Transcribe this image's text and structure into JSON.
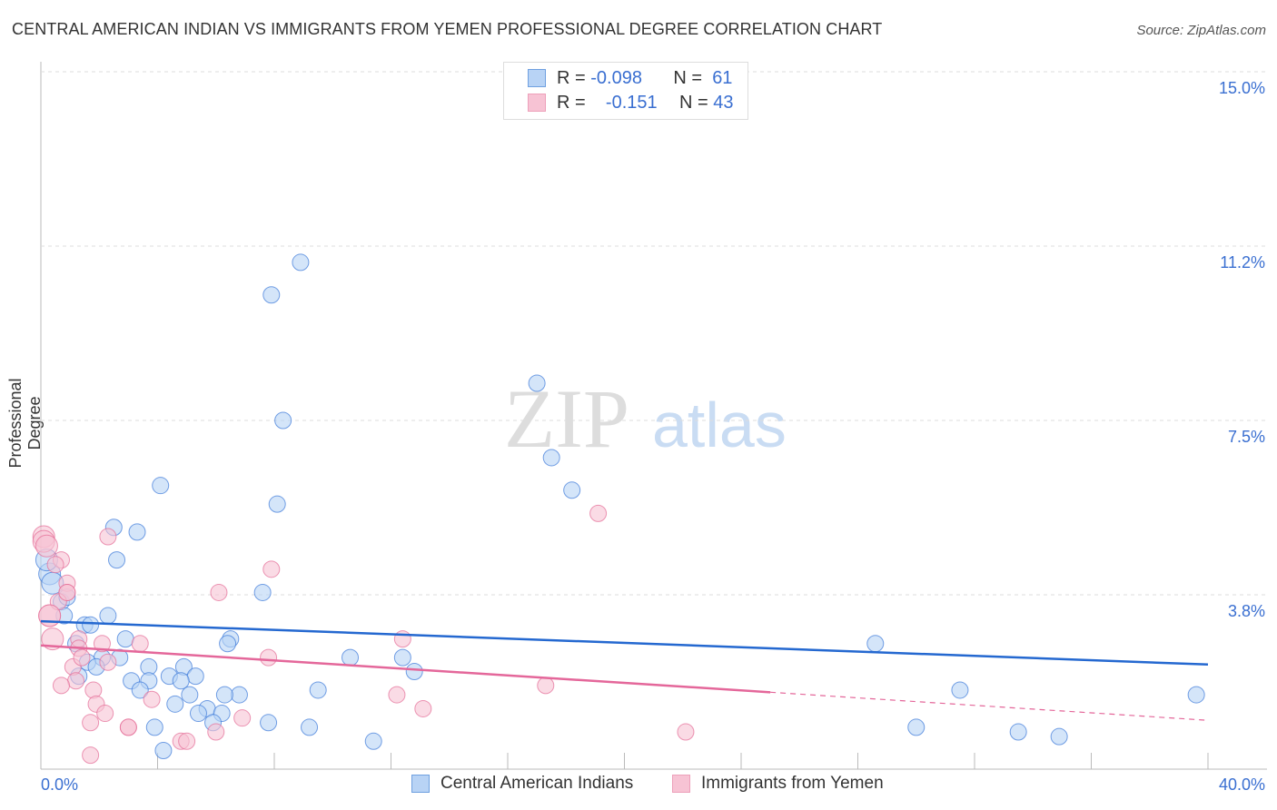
{
  "title": "CENTRAL AMERICAN INDIAN VS IMMIGRANTS FROM YEMEN PROFESSIONAL DEGREE CORRELATION CHART",
  "source": "Source: ZipAtlas.com",
  "watermark": "ZIPatlas",
  "legend": {
    "r_label": "R =",
    "n_label": "N =",
    "series": [
      {
        "r": "-0.098",
        "n": "61"
      },
      {
        "r": "-0.151",
        "n": "43"
      }
    ]
  },
  "colors": {
    "blue": "#3b78d8",
    "blue_fill": "#b8d3f5",
    "pink": "#e46b95",
    "pink_fill": "#f7c3d4",
    "tick": "#3a6fd1"
  },
  "chart_data": {
    "type": "scatter",
    "title": "CENTRAL AMERICAN INDIAN VS IMMIGRANTS FROM YEMEN PROFESSIONAL DEGREE CORRELATION CHART",
    "xlabel": "",
    "ylabel": "Professional Degree",
    "xlim": [
      0,
      40
    ],
    "ylim": [
      0,
      15
    ],
    "x_tick_labels": [
      "0.0%",
      "40.0%"
    ],
    "y_ticks": [
      3.8,
      7.5,
      11.2,
      15.0
    ],
    "y_tick_labels": [
      "3.8%",
      "7.5%",
      "11.2%",
      "15.0%"
    ],
    "grid": true,
    "legend_placement": "top-center",
    "series": [
      {
        "name": "Central American Indians",
        "trend": {
          "x": [
            0,
            40
          ],
          "y": [
            3.18,
            2.25
          ]
        },
        "points": [
          [
            8.9,
            10.9
          ],
          [
            7.9,
            10.2
          ],
          [
            8.3,
            7.5
          ],
          [
            17.0,
            8.3
          ],
          [
            17.5,
            6.7
          ],
          [
            18.2,
            6.0
          ],
          [
            8.1,
            5.7
          ],
          [
            4.1,
            6.1
          ],
          [
            2.5,
            5.2
          ],
          [
            3.3,
            5.1
          ],
          [
            2.6,
            4.5
          ],
          [
            7.6,
            3.8
          ],
          [
            0.3,
            4.2
          ],
          [
            0.4,
            4.0
          ],
          [
            0.7,
            3.6
          ],
          [
            0.9,
            3.7
          ],
          [
            0.8,
            3.3
          ],
          [
            2.3,
            3.3
          ],
          [
            1.5,
            3.1
          ],
          [
            1.7,
            3.1
          ],
          [
            2.9,
            2.8
          ],
          [
            1.2,
            2.7
          ],
          [
            6.5,
            2.8
          ],
          [
            6.4,
            2.7
          ],
          [
            2.7,
            2.4
          ],
          [
            2.1,
            2.4
          ],
          [
            1.6,
            2.3
          ],
          [
            1.9,
            2.2
          ],
          [
            3.7,
            2.2
          ],
          [
            4.9,
            2.2
          ],
          [
            1.3,
            2.0
          ],
          [
            3.1,
            1.9
          ],
          [
            3.7,
            1.9
          ],
          [
            4.4,
            2.0
          ],
          [
            5.3,
            2.0
          ],
          [
            4.8,
            1.9
          ],
          [
            3.4,
            1.7
          ],
          [
            9.5,
            1.7
          ],
          [
            10.6,
            2.4
          ],
          [
            12.4,
            2.4
          ],
          [
            12.8,
            2.1
          ],
          [
            6.8,
            1.6
          ],
          [
            6.3,
            1.6
          ],
          [
            5.1,
            1.6
          ],
          [
            4.6,
            1.4
          ],
          [
            5.7,
            1.3
          ],
          [
            6.2,
            1.2
          ],
          [
            5.4,
            1.2
          ],
          [
            5.9,
            1.0
          ],
          [
            7.8,
            1.0
          ],
          [
            3.9,
            0.9
          ],
          [
            9.2,
            0.9
          ],
          [
            4.2,
            0.4
          ],
          [
            11.4,
            0.6
          ],
          [
            28.6,
            2.7
          ],
          [
            31.5,
            1.7
          ],
          [
            30.0,
            0.9
          ],
          [
            33.5,
            0.8
          ],
          [
            34.9,
            0.7
          ],
          [
            39.6,
            1.6
          ],
          [
            0.2,
            4.5
          ]
        ]
      },
      {
        "name": "Immigrants from Yemen",
        "trend": {
          "x": [
            0,
            40
          ],
          "y": [
            2.66,
            1.05
          ],
          "solid_until": 25
        },
        "points": [
          [
            0.1,
            5.0
          ],
          [
            0.1,
            4.9
          ],
          [
            2.3,
            5.0
          ],
          [
            0.7,
            4.5
          ],
          [
            0.5,
            4.4
          ],
          [
            0.9,
            4.0
          ],
          [
            0.9,
            3.8
          ],
          [
            0.3,
            3.3
          ],
          [
            0.4,
            2.8
          ],
          [
            1.3,
            2.8
          ],
          [
            0.6,
            3.6
          ],
          [
            6.1,
            3.8
          ],
          [
            7.9,
            4.3
          ],
          [
            19.1,
            5.5
          ],
          [
            12.4,
            2.8
          ],
          [
            3.4,
            2.7
          ],
          [
            2.1,
            2.7
          ],
          [
            1.3,
            2.6
          ],
          [
            2.3,
            2.3
          ],
          [
            1.1,
            2.2
          ],
          [
            1.4,
            2.4
          ],
          [
            1.2,
            1.9
          ],
          [
            0.7,
            1.8
          ],
          [
            1.8,
            1.7
          ],
          [
            1.9,
            1.4
          ],
          [
            2.2,
            1.2
          ],
          [
            1.7,
            1.0
          ],
          [
            3.0,
            0.9
          ],
          [
            3.0,
            0.9
          ],
          [
            3.8,
            1.5
          ],
          [
            7.8,
            2.4
          ],
          [
            12.2,
            1.6
          ],
          [
            13.1,
            1.3
          ],
          [
            17.3,
            1.8
          ],
          [
            6.9,
            1.1
          ],
          [
            6.0,
            0.8
          ],
          [
            4.8,
            0.6
          ],
          [
            5.0,
            0.6
          ],
          [
            1.7,
            0.3
          ],
          [
            22.1,
            0.8
          ],
          [
            0.3,
            3.3
          ],
          [
            0.9,
            3.8
          ],
          [
            0.2,
            4.8
          ]
        ]
      }
    ]
  },
  "bottom_legend": [
    "Central American Indians",
    "Immigrants from Yemen"
  ]
}
